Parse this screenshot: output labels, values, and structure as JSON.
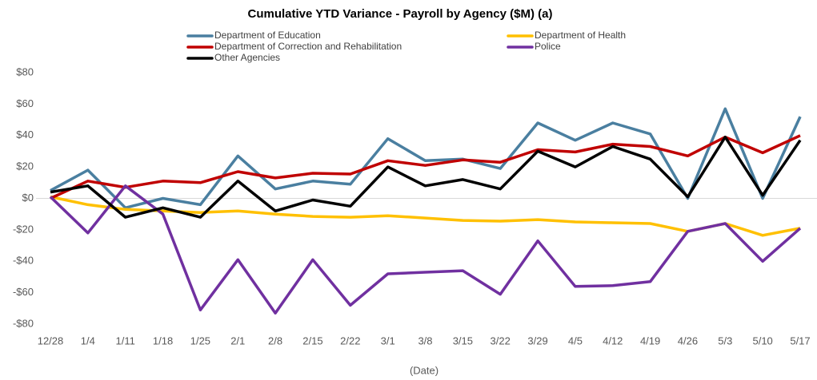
{
  "chart_data": {
    "type": "line",
    "title": "Cumulative YTD Variance - Payroll by Agency ($M) (a)",
    "x_label": "(Date)",
    "categories": [
      "12/28",
      "1/4",
      "1/11",
      "1/18",
      "1/25",
      "2/1",
      "2/8",
      "2/15",
      "2/22",
      "3/1",
      "3/8",
      "3/15",
      "3/22",
      "3/29",
      "4/5",
      "4/12",
      "4/19",
      "4/26",
      "5/3",
      "5/10",
      "5/17"
    ],
    "series": [
      {
        "name": "Department of Education",
        "color": "#4a7fa0",
        "values": [
          5,
          18,
          -6,
          0,
          -4,
          27,
          6,
          11,
          9,
          38,
          24,
          25,
          19,
          48,
          37,
          48,
          41,
          0,
          57,
          0,
          52
        ]
      },
      {
        "name": "Department of Health",
        "color": "#ffc000",
        "values": [
          1,
          -4,
          -7,
          -8,
          -9,
          -8,
          -10,
          -11.5,
          -12,
          -11,
          -12.5,
          -14,
          -14.5,
          -13.5,
          -15,
          -15.5,
          -16,
          -21,
          -16,
          -23.5,
          -19
        ]
      },
      {
        "name": "Department of Correction and Rehabilitation",
        "color": "#c00000",
        "values": [
          0,
          11,
          7,
          11,
          10,
          17,
          13,
          16,
          15.5,
          24,
          21,
          24.5,
          23,
          31,
          29.5,
          34.5,
          33,
          27,
          39,
          29,
          40
        ]
      },
      {
        "name": "Police",
        "color": "#7030a0",
        "values": [
          1,
          -22,
          8,
          -10,
          -71,
          -39,
          -73,
          -39,
          -68,
          -48,
          -47,
          -46,
          -61,
          -27,
          -56,
          -55.5,
          -53,
          -21,
          -16,
          -40,
          -19
        ]
      },
      {
        "name": "Other Agencies",
        "color": "#000000",
        "values": [
          4,
          8,
          -12,
          -6,
          -12,
          11,
          -8,
          -1,
          -5,
          20,
          8,
          12,
          6,
          30,
          20,
          33,
          25,
          1,
          39,
          2,
          37
        ]
      }
    ],
    "ylim": [
      -80,
      80
    ],
    "yticks": [
      {
        "value": -80,
        "label": "-$80"
      },
      {
        "value": -60,
        "label": "-$60"
      },
      {
        "value": -40,
        "label": "-$40"
      },
      {
        "value": -20,
        "label": "-$20"
      },
      {
        "value": 0,
        "label": "$0"
      },
      {
        "value": 20,
        "label": "$20"
      },
      {
        "value": 40,
        "label": "$40"
      },
      {
        "value": 60,
        "label": "$60"
      },
      {
        "value": 80,
        "label": "$80"
      }
    ],
    "grid": false
  }
}
